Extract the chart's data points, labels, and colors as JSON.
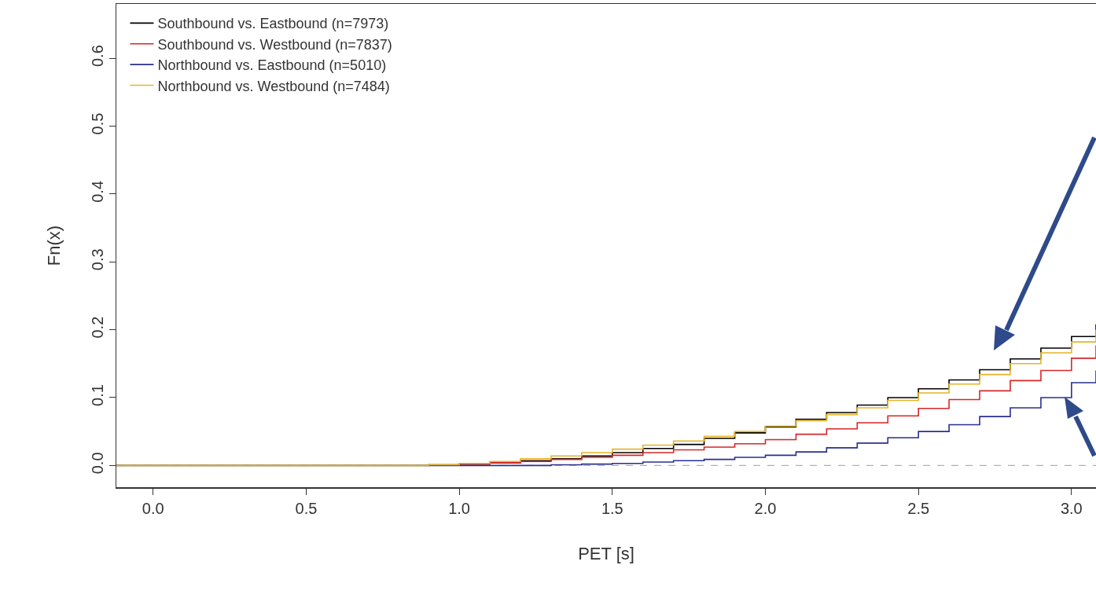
{
  "chart_data": {
    "type": "step",
    "xlabel": "PET [s]",
    "ylabel": "Fn(x)",
    "x": [
      -0.12,
      0.8,
      0.9,
      1.0,
      1.1,
      1.2,
      1.3,
      1.4,
      1.5,
      1.6,
      1.7,
      1.8,
      1.9,
      2.0,
      2.1,
      2.2,
      2.3,
      2.4,
      2.5,
      2.6,
      2.7,
      2.8,
      2.9,
      3.0,
      3.08
    ],
    "series": [
      {
        "name": "Southbound vs. Eastbound (n=7973)",
        "color": "#000000",
        "values": [
          0,
          0,
          0.001,
          0.002,
          0.004,
          0.007,
          0.01,
          0.014,
          0.019,
          0.025,
          0.031,
          0.04,
          0.048,
          0.057,
          0.068,
          0.078,
          0.089,
          0.1,
          0.113,
          0.126,
          0.141,
          0.157,
          0.173,
          0.19,
          0.208
        ]
      },
      {
        "name": "Southbound vs. Westbound (n=7837)",
        "color": "#d62728",
        "values": [
          null,
          null,
          null,
          0.002,
          0.004,
          0.006,
          0.009,
          0.012,
          0.015,
          0.019,
          0.023,
          0.027,
          0.032,
          0.038,
          0.046,
          0.054,
          0.063,
          0.073,
          0.084,
          0.097,
          0.11,
          0.125,
          0.14,
          0.158,
          0.177
        ]
      },
      {
        "name": "Northbound vs. Eastbound (n=5010)",
        "color": "#2b2f8f",
        "values": [
          null,
          null,
          0,
          0,
          0,
          0,
          0.001,
          0.002,
          0.003,
          0.005,
          0.007,
          0.009,
          0.012,
          0.015,
          0.02,
          0.026,
          0.033,
          0.041,
          0.05,
          0.06,
          0.072,
          0.085,
          0.1,
          0.122,
          0.14
        ]
      },
      {
        "name": "Northbound vs. Westbound (n=7484)",
        "color": "#e6b428",
        "values": [
          0,
          0,
          0.001,
          0.003,
          0.006,
          0.01,
          0.014,
          0.019,
          0.024,
          0.03,
          0.036,
          0.043,
          0.05,
          0.058,
          0.066,
          0.075,
          0.085,
          0.096,
          0.107,
          0.12,
          0.134,
          0.15,
          0.166,
          0.182,
          0.2
        ]
      }
    ],
    "xlim": [
      -0.12,
      3.08
    ],
    "xticks": [
      {
        "value": 0,
        "label": "0.0"
      },
      0.5,
      {
        "value": 1,
        "label": "1.0"
      },
      1.5,
      {
        "value": 2,
        "label": "2.0"
      },
      2.5,
      {
        "value": 3,
        "label": "3.0"
      }
    ],
    "ylim": [
      -0.032,
      0.68
    ],
    "yticks": [
      {
        "value": 0,
        "label": "0.0"
      },
      0.1,
      0.2,
      0.3,
      0.4,
      0.5,
      0.6
    ],
    "ref_lines": [
      {
        "axis": "y",
        "value": 0,
        "color": "#b0b0b0",
        "line_style": "dashed"
      }
    ],
    "grid": false,
    "legend": "top left",
    "line_style": "solid",
    "marker": "none"
  }
}
